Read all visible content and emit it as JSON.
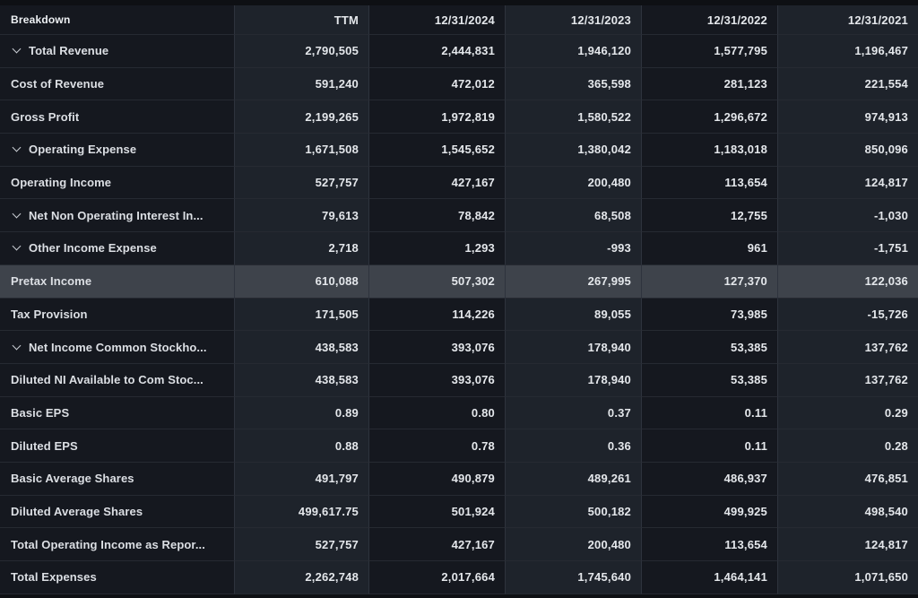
{
  "table": {
    "columns": [
      {
        "label": "Breakdown"
      },
      {
        "label": "TTM"
      },
      {
        "label": "12/31/2024"
      },
      {
        "label": "12/31/2023"
      },
      {
        "label": "12/31/2022"
      },
      {
        "label": "12/31/2021"
      }
    ],
    "rows": [
      {
        "label": "Total Revenue",
        "expandable": true,
        "highlighted": false,
        "values": [
          "2,790,505",
          "2,444,831",
          "1,946,120",
          "1,577,795",
          "1,196,467"
        ]
      },
      {
        "label": "Cost of Revenue",
        "expandable": false,
        "highlighted": false,
        "values": [
          "591,240",
          "472,012",
          "365,598",
          "281,123",
          "221,554"
        ]
      },
      {
        "label": "Gross Profit",
        "expandable": false,
        "highlighted": false,
        "values": [
          "2,199,265",
          "1,972,819",
          "1,580,522",
          "1,296,672",
          "974,913"
        ]
      },
      {
        "label": "Operating Expense",
        "expandable": true,
        "highlighted": false,
        "values": [
          "1,671,508",
          "1,545,652",
          "1,380,042",
          "1,183,018",
          "850,096"
        ]
      },
      {
        "label": "Operating Income",
        "expandable": false,
        "highlighted": false,
        "values": [
          "527,757",
          "427,167",
          "200,480",
          "113,654",
          "124,817"
        ]
      },
      {
        "label": "Net Non Operating Interest In...",
        "expandable": true,
        "highlighted": false,
        "values": [
          "79,613",
          "78,842",
          "68,508",
          "12,755",
          "-1,030"
        ]
      },
      {
        "label": "Other Income Expense",
        "expandable": true,
        "highlighted": false,
        "values": [
          "2,718",
          "1,293",
          "-993",
          "961",
          "-1,751"
        ]
      },
      {
        "label": "Pretax Income",
        "expandable": false,
        "highlighted": true,
        "values": [
          "610,088",
          "507,302",
          "267,995",
          "127,370",
          "122,036"
        ]
      },
      {
        "label": "Tax Provision",
        "expandable": false,
        "highlighted": false,
        "values": [
          "171,505",
          "114,226",
          "89,055",
          "73,985",
          "-15,726"
        ]
      },
      {
        "label": "Net Income Common Stockho...",
        "expandable": true,
        "highlighted": false,
        "values": [
          "438,583",
          "393,076",
          "178,940",
          "53,385",
          "137,762"
        ]
      },
      {
        "label": "Diluted NI Available to Com Stoc...",
        "expandable": false,
        "highlighted": false,
        "values": [
          "438,583",
          "393,076",
          "178,940",
          "53,385",
          "137,762"
        ]
      },
      {
        "label": "Basic EPS",
        "expandable": false,
        "highlighted": false,
        "values": [
          "0.89",
          "0.80",
          "0.37",
          "0.11",
          "0.29"
        ]
      },
      {
        "label": "Diluted EPS",
        "expandable": false,
        "highlighted": false,
        "values": [
          "0.88",
          "0.78",
          "0.36",
          "0.11",
          "0.28"
        ]
      },
      {
        "label": "Basic Average Shares",
        "expandable": false,
        "highlighted": false,
        "values": [
          "491,797",
          "490,879",
          "489,261",
          "486,937",
          "476,851"
        ]
      },
      {
        "label": "Diluted Average Shares",
        "expandable": false,
        "highlighted": false,
        "values": [
          "499,617.75",
          "501,924",
          "500,182",
          "499,925",
          "498,540"
        ]
      },
      {
        "label": "Total Operating Income as Repor...",
        "expandable": false,
        "highlighted": false,
        "values": [
          "527,757",
          "427,167",
          "200,480",
          "113,654",
          "124,817"
        ]
      },
      {
        "label": "Total Expenses",
        "expandable": false,
        "highlighted": false,
        "values": [
          "2,262,748",
          "2,017,664",
          "1,745,640",
          "1,464,141",
          "1,071,650"
        ]
      }
    ]
  },
  "icons": {
    "expand_chevron": "chevron-down-icon"
  },
  "colors": {
    "background": "#0e1014",
    "column_dark": "#15181f",
    "column_light": "#1e232b",
    "row_highlight": "#3e434b",
    "row_border": "#262a32",
    "column_border": "#2e333d",
    "text_primary": "#e4e7eb",
    "text_header": "#eef1f4"
  }
}
